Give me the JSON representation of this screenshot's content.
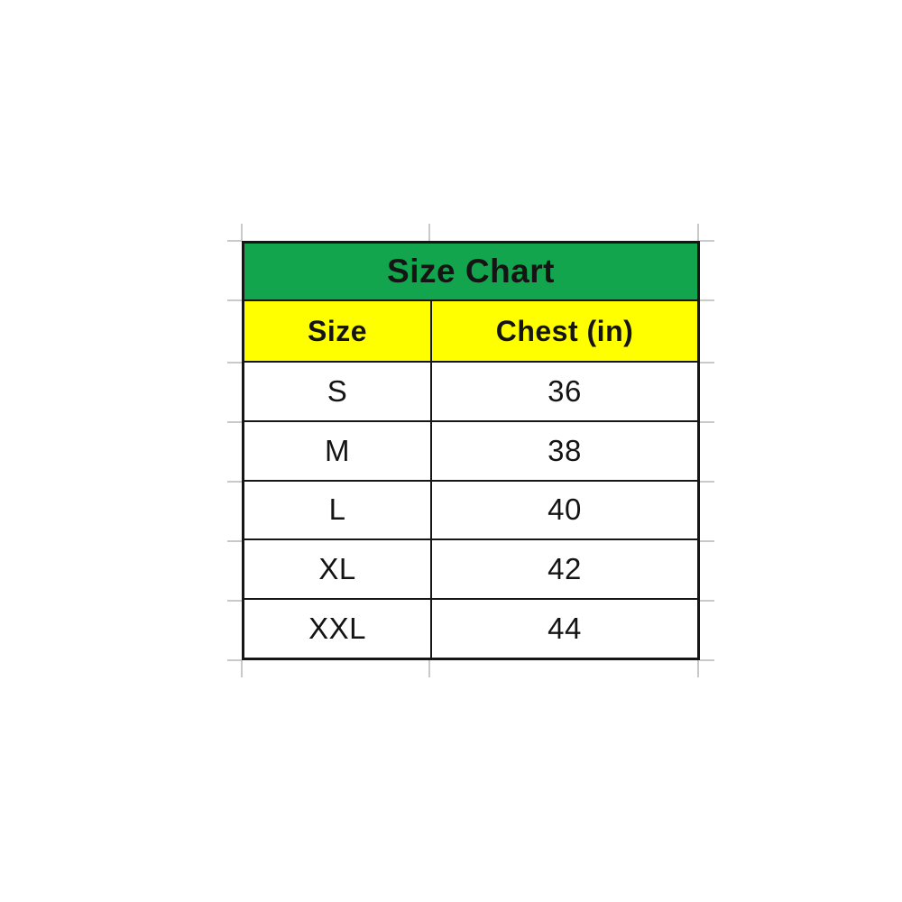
{
  "chart_data": {
    "type": "table",
    "title": "Size Chart",
    "columns": [
      "Size",
      "Chest (in)"
    ],
    "rows": [
      [
        "S",
        "36"
      ],
      [
        "M",
        "38"
      ],
      [
        "L",
        "40"
      ],
      [
        "XL",
        "42"
      ],
      [
        "XXL",
        "44"
      ]
    ]
  },
  "table": {
    "title": "Size Chart",
    "title_bg": "#12a54d",
    "header_bg": "#ffff00",
    "border_color": "#161616",
    "gridline_color": "#c9c9c9",
    "headers": {
      "size": "Size",
      "chest": "Chest (in)"
    },
    "rows": [
      {
        "size": "S",
        "chest": "36"
      },
      {
        "size": "M",
        "chest": "38"
      },
      {
        "size": "L",
        "chest": "40"
      },
      {
        "size": "XL",
        "chest": "42"
      },
      {
        "size": "XXL",
        "chest": "44"
      }
    ]
  }
}
